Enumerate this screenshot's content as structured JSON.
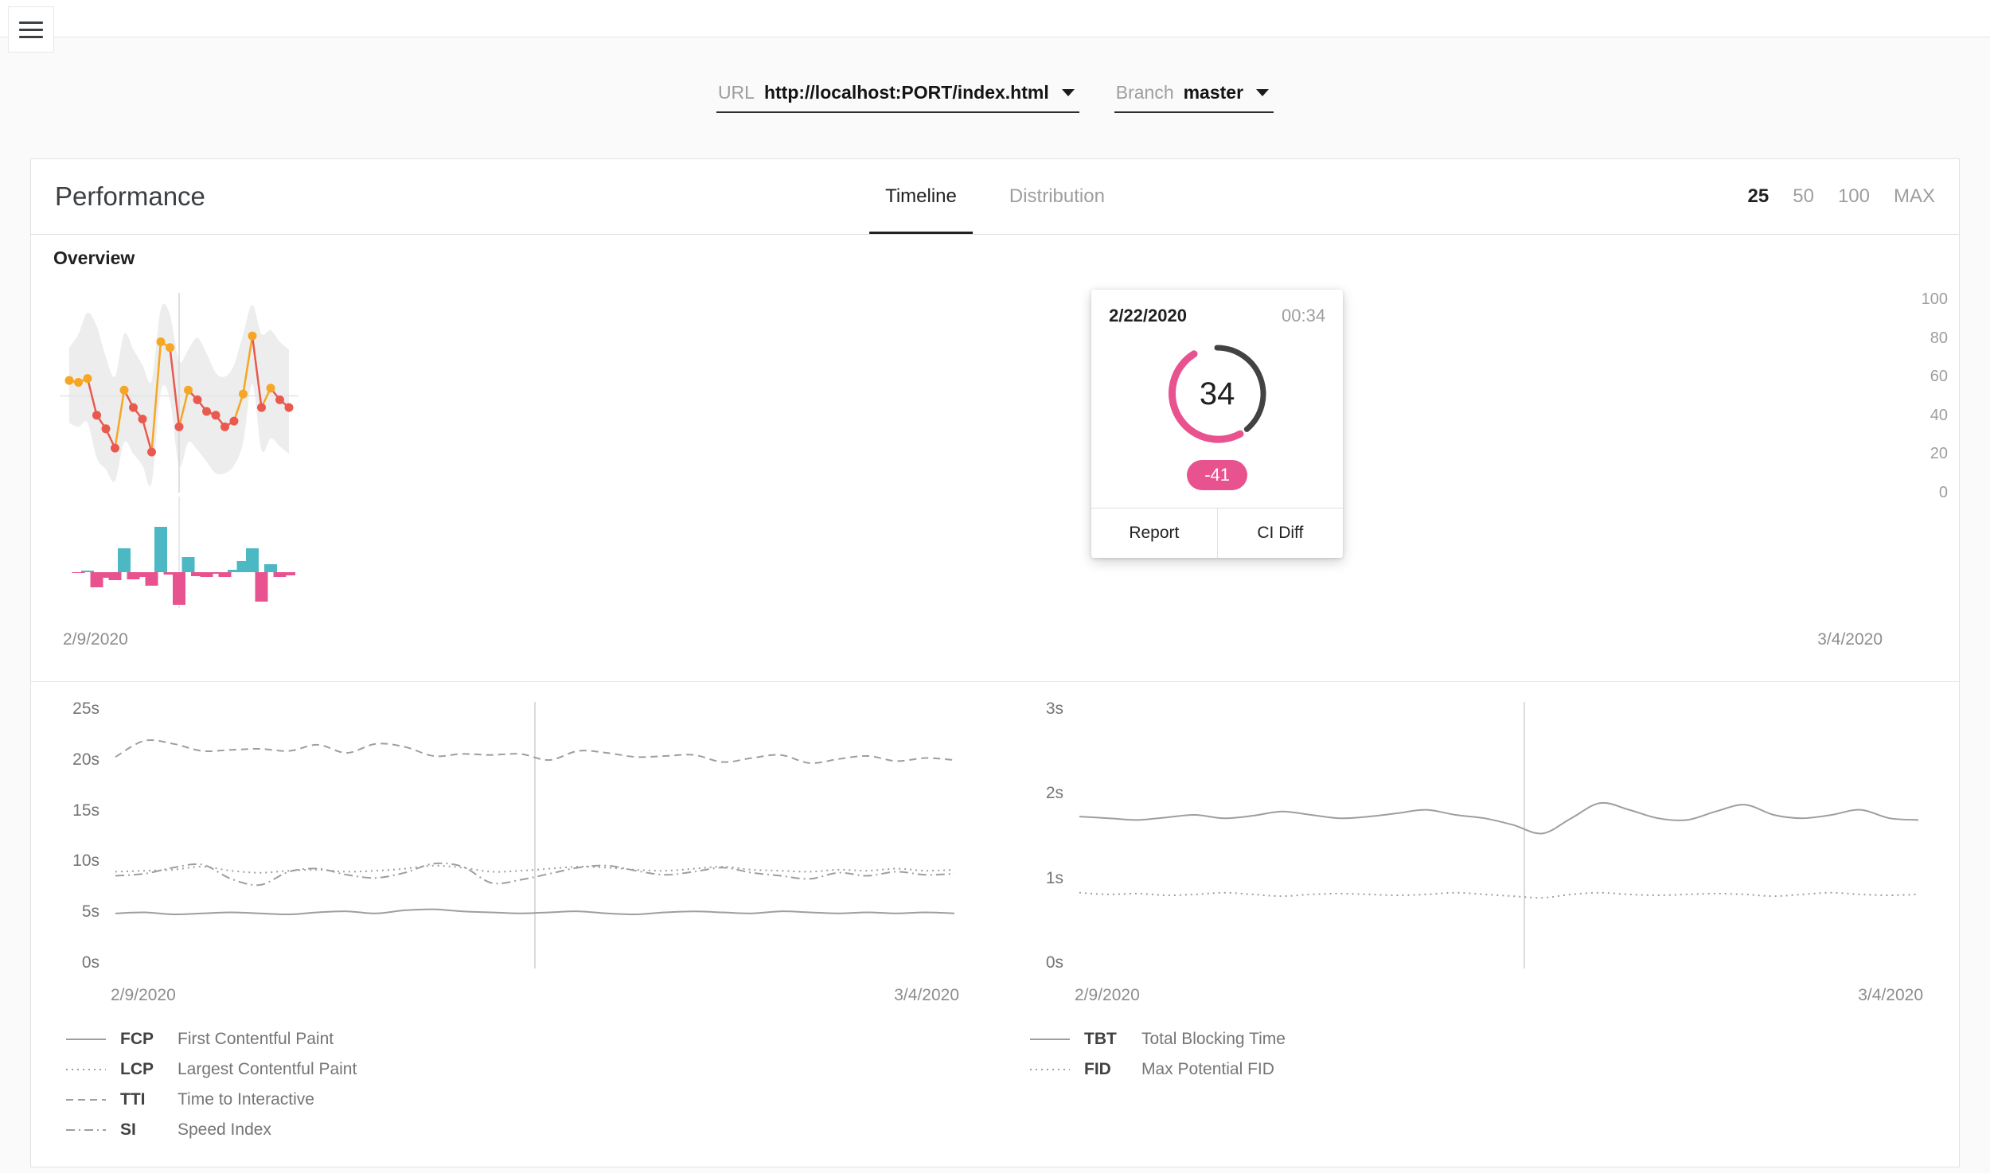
{
  "colors": {
    "orange": "#f5a623",
    "red": "#e9594e",
    "teal": "#4cb8c4",
    "pink": "#e8538f",
    "band": "#ededed",
    "gridline": "#e3e3e3",
    "metric_line": "#9e9e9e",
    "gauge_gray": "#424242"
  },
  "selectors": {
    "url_label": "URL",
    "url_value": "http://localhost:PORT/index.html",
    "branch_label": "Branch",
    "branch_value": "master"
  },
  "header": {
    "title": "Performance",
    "tabs": [
      {
        "label": "Timeline",
        "active": true
      },
      {
        "label": "Distribution",
        "active": false
      }
    ],
    "ranges": [
      {
        "label": "25",
        "active": true
      },
      {
        "label": "50",
        "active": false
      },
      {
        "label": "100",
        "active": false
      },
      {
        "label": "MAX",
        "active": false
      }
    ]
  },
  "overview": {
    "label": "Overview",
    "start_date": "2/9/2020",
    "end_date": "3/4/2020",
    "y_ticks": [
      {
        "label": "100",
        "value": 100
      },
      {
        "label": "80",
        "value": 80
      },
      {
        "label": "60",
        "value": 60
      },
      {
        "label": "40",
        "value": 40
      },
      {
        "label": "20",
        "value": 20
      },
      {
        "label": "0",
        "value": 0
      }
    ]
  },
  "tooltip": {
    "date": "2/22/2020",
    "time": "00:34",
    "score": "34",
    "delta": "-41",
    "report_label": "Report",
    "diff_label": "CI Diff",
    "arc_gray": [
      0,
      140
    ],
    "arc_pink": [
      150,
      330
    ]
  },
  "metrics_left": {
    "start_date": "2/9/2020",
    "end_date": "3/4/2020",
    "y_ticks": [
      {
        "label": "25s",
        "value": 25
      },
      {
        "label": "20s",
        "value": 20
      },
      {
        "label": "15s",
        "value": 15
      },
      {
        "label": "10s",
        "value": 10
      },
      {
        "label": "5s",
        "value": 5
      },
      {
        "label": "0s",
        "value": 0
      }
    ],
    "legend": [
      {
        "code": "FCP",
        "name": "First Contentful Paint",
        "style": "solid"
      },
      {
        "code": "LCP",
        "name": "Largest Contentful Paint",
        "style": "dotted"
      },
      {
        "code": "TTI",
        "name": "Time to Interactive",
        "style": "dashed"
      },
      {
        "code": "SI",
        "name": "Speed Index",
        "style": "dashdot"
      }
    ]
  },
  "metrics_right": {
    "start_date": "2/9/2020",
    "end_date": "3/4/2020",
    "y_ticks": [
      {
        "label": "3s",
        "value": 3
      },
      {
        "label": "2s",
        "value": 2
      },
      {
        "label": "1s",
        "value": 1
      },
      {
        "label": "0s",
        "value": 0
      }
    ],
    "legend": [
      {
        "code": "TBT",
        "name": "Total Blocking Time",
        "style": "solid"
      },
      {
        "code": "FID",
        "name": "Max Potential FID",
        "style": "dotted"
      }
    ]
  },
  "chart_data": [
    {
      "type": "line",
      "name": "performance-score-timeline",
      "title": "Performance overview",
      "x_range": [
        "2/9/2020",
        "3/4/2020"
      ],
      "ylim": [
        0,
        100
      ],
      "gridline_at": 50,
      "hover_index": 12,
      "hovered": {
        "date": "2/22/2020",
        "time": "00:34",
        "score": 34,
        "delta": -41
      },
      "scores": [
        58,
        57,
        59,
        40,
        33,
        23,
        53,
        44,
        38,
        21,
        78,
        75,
        34,
        53,
        48,
        42,
        40,
        34,
        37,
        51,
        81,
        44,
        54,
        48,
        44
      ],
      "diffs": [
        -1,
        2,
        -19,
        -7,
        -10,
        30,
        -9,
        -6,
        -17,
        57,
        -3,
        -41,
        19,
        -5,
        -6,
        -2,
        -6,
        3,
        14,
        30,
        -37,
        10,
        -6,
        -4
      ],
      "band_upper": [
        75,
        82,
        93,
        86,
        70,
        60,
        82,
        74,
        66,
        58,
        95,
        92,
        68,
        74,
        80,
        72,
        62,
        60,
        66,
        82,
        97,
        82,
        84,
        78,
        74
      ],
      "band_lower": [
        36,
        34,
        36,
        18,
        12,
        6,
        26,
        20,
        14,
        5,
        52,
        48,
        14,
        26,
        22,
        16,
        10,
        10,
        14,
        26,
        56,
        22,
        28,
        24,
        20
      ]
    },
    {
      "type": "line",
      "name": "load-metrics-timeline",
      "x_range": [
        "2/9/2020",
        "3/4/2020"
      ],
      "ylim": [
        0,
        25
      ],
      "unit": "s",
      "hover_fraction": 0.5,
      "series": [
        {
          "name": "FCP",
          "style": "solid",
          "values": [
            4.8,
            4.9,
            4.7,
            4.8,
            4.9,
            4.8,
            4.7,
            4.9,
            5.0,
            4.8,
            5.1,
            5.2,
            5.0,
            4.9,
            4.8,
            4.9,
            5.0,
            4.8,
            4.7,
            4.9,
            5.0,
            4.9,
            4.8,
            5.0,
            4.9,
            4.8,
            4.9,
            4.8,
            4.9,
            4.8
          ]
        },
        {
          "name": "LCP",
          "style": "dotted",
          "values": [
            8.9,
            9.0,
            9.1,
            9.4,
            9.0,
            8.8,
            9.0,
            9.1,
            8.9,
            9.0,
            9.2,
            9.5,
            9.3,
            8.9,
            9.0,
            9.2,
            9.4,
            9.3,
            9.1,
            9.0,
            9.2,
            9.4,
            9.1,
            9.0,
            8.9,
            9.1,
            9.0,
            9.2,
            9.0,
            9.1
          ]
        },
        {
          "name": "TTI",
          "style": "dashed",
          "values": [
            20.2,
            21.8,
            21.5,
            20.8,
            20.9,
            21.0,
            20.8,
            21.4,
            20.6,
            21.5,
            21.2,
            20.3,
            20.5,
            20.4,
            20.5,
            19.9,
            20.8,
            20.6,
            20.2,
            20.3,
            20.4,
            19.7,
            20.1,
            20.4,
            19.6,
            20.0,
            20.3,
            19.8,
            20.1,
            19.9
          ]
        },
        {
          "name": "SI",
          "style": "dashdot",
          "values": [
            8.5,
            8.7,
            9.3,
            9.6,
            8.2,
            7.6,
            8.9,
            9.2,
            8.6,
            8.3,
            8.8,
            9.7,
            9.4,
            7.8,
            8.1,
            8.7,
            9.3,
            9.5,
            9.0,
            8.6,
            8.9,
            9.3,
            8.8,
            8.5,
            8.2,
            8.8,
            8.5,
            8.9,
            8.6,
            8.7
          ]
        }
      ]
    },
    {
      "type": "line",
      "name": "blocking-metrics-timeline",
      "x_range": [
        "2/9/2020",
        "3/4/2020"
      ],
      "ylim": [
        0,
        3
      ],
      "unit": "s",
      "hover_fraction": 0.53,
      "series": [
        {
          "name": "TBT",
          "style": "solid",
          "values": [
            1.72,
            1.7,
            1.68,
            1.71,
            1.74,
            1.7,
            1.73,
            1.78,
            1.74,
            1.7,
            1.72,
            1.76,
            1.8,
            1.74,
            1.7,
            1.62,
            1.52,
            1.7,
            1.88,
            1.8,
            1.7,
            1.68,
            1.78,
            1.86,
            1.74,
            1.7,
            1.74,
            1.8,
            1.7,
            1.68
          ]
        },
        {
          "name": "FID",
          "style": "dotted",
          "values": [
            0.82,
            0.8,
            0.81,
            0.79,
            0.8,
            0.82,
            0.8,
            0.78,
            0.8,
            0.81,
            0.8,
            0.79,
            0.8,
            0.82,
            0.8,
            0.78,
            0.76,
            0.8,
            0.82,
            0.8,
            0.79,
            0.8,
            0.81,
            0.8,
            0.78,
            0.8,
            0.82,
            0.8,
            0.79,
            0.8
          ]
        }
      ]
    }
  ]
}
